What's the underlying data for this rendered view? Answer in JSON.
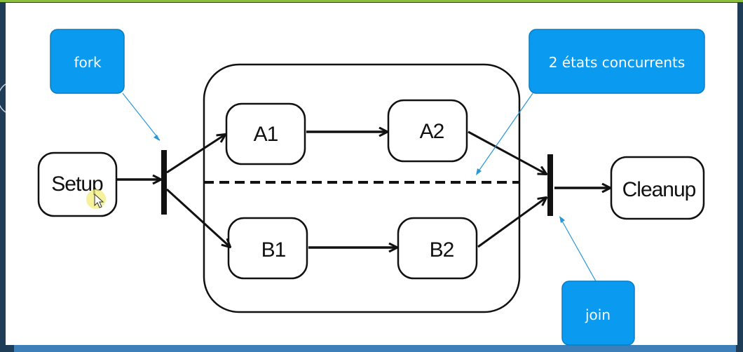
{
  "diagram": {
    "states": {
      "setup": "Setup",
      "a1": "A1",
      "a2": "A2",
      "b1": "B1",
      "b2": "B2",
      "cleanup": "Cleanup"
    },
    "callouts": {
      "fork": "fork",
      "concurrent": "2 états concurrents",
      "join": "join"
    },
    "colors": {
      "callout_fill": "#0a9af0",
      "callout_stroke": "#0b7cc4",
      "pointer_line": "#2a97d9",
      "ink": "#111111",
      "frame_accent": "#8bbf3c"
    },
    "icons": {
      "cursor": "mouse-pointer-icon"
    }
  }
}
